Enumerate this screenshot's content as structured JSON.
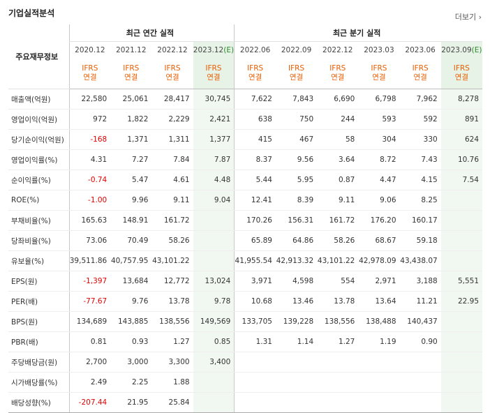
{
  "section_title": "기업실적분석",
  "more_link": "더보기",
  "header": {
    "row_label": "주요재무정보",
    "annual_group": "최근 연간 실적",
    "quarter_group": "최근 분기 실적",
    "periods": [
      "2020.12",
      "2021.12",
      "2022.12",
      "2023.12",
      "2022.06",
      "2022.09",
      "2022.12",
      "2023.03",
      "2023.06",
      "2023.09"
    ],
    "estimate_mark": "(E)",
    "ifrs": "IFRS",
    "basis": "연결"
  },
  "rows": [
    {
      "label": "매출액(억원)",
      "values": [
        "22,580",
        "25,061",
        "28,417",
        "30,745",
        "7,622",
        "7,843",
        "6,690",
        "6,798",
        "7,962",
        "8,278"
      ]
    },
    {
      "label": "영업이익(억원)",
      "values": [
        "972",
        "1,822",
        "2,229",
        "2,421",
        "638",
        "750",
        "244",
        "593",
        "592",
        "891"
      ]
    },
    {
      "label": "당기순이익(억원)",
      "values": [
        "-168",
        "1,371",
        "1,311",
        "1,377",
        "415",
        "467",
        "58",
        "304",
        "330",
        "624"
      ]
    },
    {
      "label": "영업이익률(%)",
      "values": [
        "4.31",
        "7.27",
        "7.84",
        "7.87",
        "8.37",
        "9.56",
        "3.64",
        "8.72",
        "7.43",
        "10.76"
      ]
    },
    {
      "label": "순이익률(%)",
      "values": [
        "-0.74",
        "5.47",
        "4.61",
        "4.48",
        "5.44",
        "5.95",
        "0.87",
        "4.47",
        "4.15",
        "7.54"
      ]
    },
    {
      "label": "ROE(%)",
      "values": [
        "-1.00",
        "9.96",
        "9.11",
        "9.04",
        "12.41",
        "8.39",
        "9.11",
        "9.06",
        "8.25",
        ""
      ]
    },
    {
      "label": "부채비율(%)",
      "values": [
        "165.63",
        "148.91",
        "161.72",
        "",
        "170.26",
        "156.31",
        "161.72",
        "176.20",
        "160.17",
        ""
      ]
    },
    {
      "label": "당좌비율(%)",
      "values": [
        "73.06",
        "70.49",
        "58.26",
        "",
        "65.89",
        "64.86",
        "58.26",
        "68.67",
        "59.18",
        ""
      ]
    },
    {
      "label": "유보율(%)",
      "values": [
        "39,511.86",
        "40,757.95",
        "43,101.22",
        "",
        "41,955.54",
        "42,913.32",
        "43,101.22",
        "42,978.09",
        "43,438.07",
        ""
      ]
    },
    {
      "label": "EPS(원)",
      "values": [
        "-1,397",
        "13,684",
        "12,772",
        "13,024",
        "3,971",
        "4,598",
        "554",
        "2,971",
        "3,188",
        "5,551"
      ]
    },
    {
      "label": "PER(배)",
      "values": [
        "-77.67",
        "9.76",
        "13.78",
        "9.78",
        "10.68",
        "13.46",
        "13.78",
        "13.64",
        "11.21",
        "22.95"
      ]
    },
    {
      "label": "BPS(원)",
      "values": [
        "134,689",
        "143,885",
        "138,556",
        "149,569",
        "133,705",
        "139,228",
        "138,556",
        "138,488",
        "140,437",
        ""
      ]
    },
    {
      "label": "PBR(배)",
      "values": [
        "0.81",
        "0.93",
        "1.27",
        "0.85",
        "1.31",
        "1.14",
        "1.27",
        "1.19",
        "0.90",
        ""
      ]
    },
    {
      "label": "주당배당금(원)",
      "values": [
        "2,700",
        "3,000",
        "3,300",
        "3,400",
        "",
        "",
        "",
        "",
        "",
        ""
      ]
    },
    {
      "label": "시가배당률(%)",
      "values": [
        "2.49",
        "2.25",
        "1.88",
        "",
        "",
        "",
        "",
        "",
        "",
        ""
      ]
    },
    {
      "label": "배당성향(%)",
      "values": [
        "-207.44",
        "21.95",
        "25.84",
        "",
        "",
        "",
        "",
        "",
        "",
        ""
      ]
    }
  ]
}
